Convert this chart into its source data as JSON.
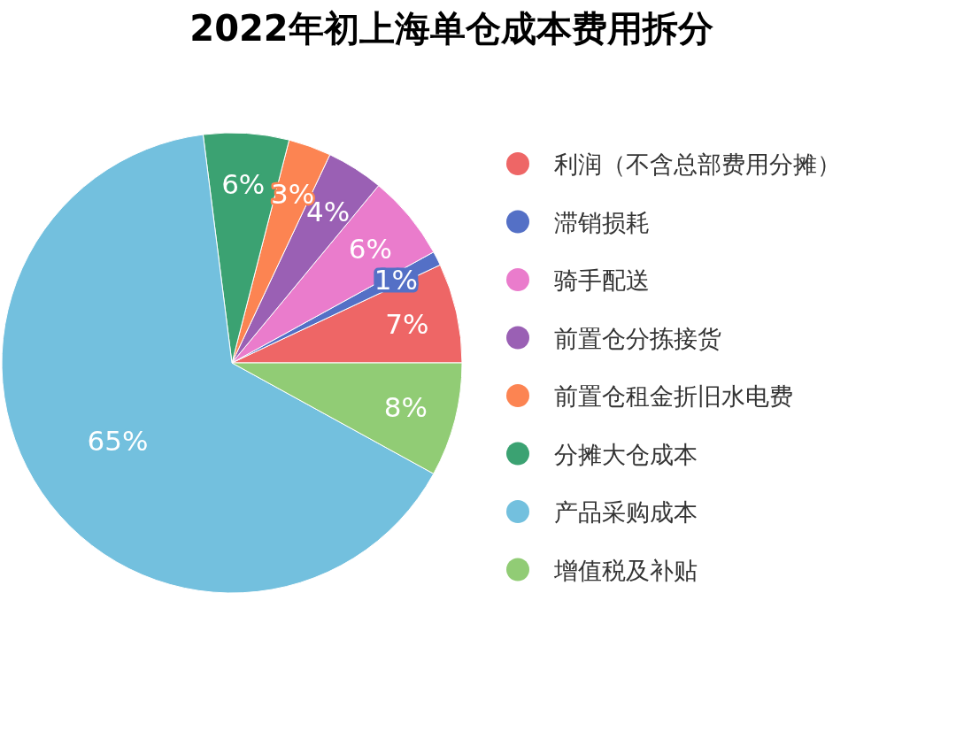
{
  "chart_data": {
    "type": "pie",
    "title": "2022年初上海单仓成本费用拆分",
    "categories": [
      "利润（不含总部费用分摊）",
      "滞销损耗",
      "骑手配送",
      "前置仓分拣接货",
      "前置仓租金折旧水电费",
      "分摊大仓成本",
      "产品采购成本",
      "增值税及补贴"
    ],
    "values": [
      7,
      1,
      6,
      4,
      3,
      6,
      65,
      8
    ],
    "colors": [
      "#ee6666",
      "#5470c6",
      "#ea7ccc",
      "#9a60b4",
      "#fc8452",
      "#3ba272",
      "#73c0de",
      "#91cc75"
    ],
    "value_labels": [
      "7%",
      "1%",
      "6%",
      "4%",
      "3%",
      "6%",
      "65%",
      "8%"
    ],
    "legend": "right"
  }
}
